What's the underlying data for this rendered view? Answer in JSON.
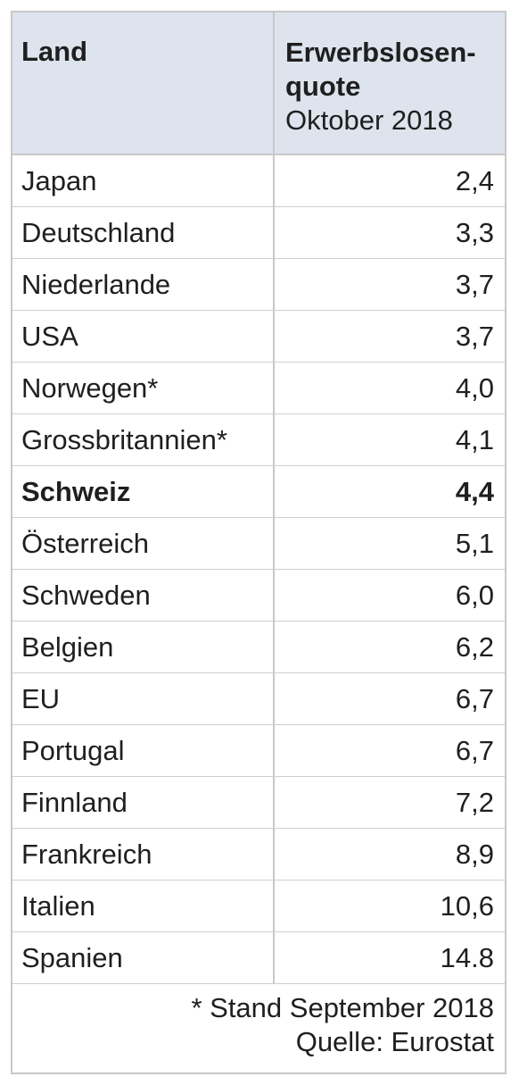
{
  "header": {
    "land": "Land",
    "rate_title": "Erwerbslosen-\nquote",
    "rate_subtitle": "Oktober 2018"
  },
  "rows": [
    {
      "land": "Japan",
      "rate": "2,4"
    },
    {
      "land": "Deutschland",
      "rate": "3,3"
    },
    {
      "land": "Niederlande",
      "rate": "3,7"
    },
    {
      "land": "USA",
      "rate": "3,7"
    },
    {
      "land": "Norwegen*",
      "rate": "4,0"
    },
    {
      "land": "Grossbritannien*",
      "rate": "4,1"
    },
    {
      "land": "Schweiz",
      "rate": "4,4",
      "highlight": true
    },
    {
      "land": "Österreich",
      "rate": "5,1"
    },
    {
      "land": "Schweden",
      "rate": "6,0"
    },
    {
      "land": "Belgien",
      "rate": "6,2"
    },
    {
      "land": "EU",
      "rate": "6,7"
    },
    {
      "land": "Portugal",
      "rate": "6,7"
    },
    {
      "land": "Finnland",
      "rate": "7,2"
    },
    {
      "land": "Frankreich",
      "rate": "8,9"
    },
    {
      "land": "Italien",
      "rate": "10,6"
    },
    {
      "land": "Spanien",
      "rate": "14.8"
    }
  ],
  "footer": {
    "note": "* Stand September 2018",
    "source": "Quelle: Eurostat"
  }
}
